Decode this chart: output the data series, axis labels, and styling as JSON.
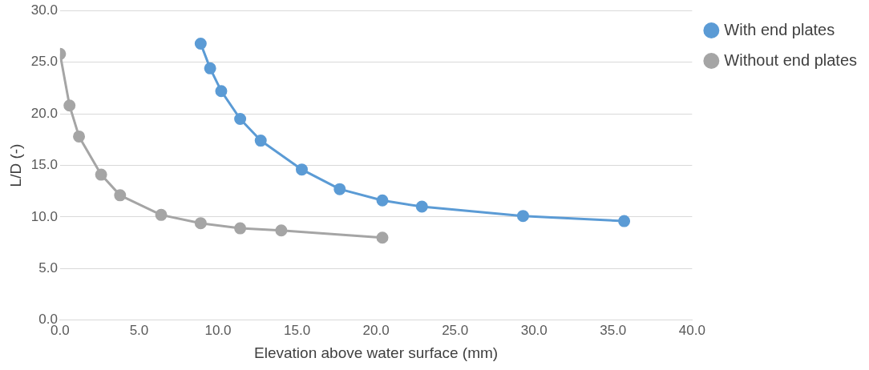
{
  "chart_data": {
    "type": "line",
    "xlabel": "Elevation above water surface (mm)",
    "ylabel": "L/D (-)",
    "xlim": [
      0,
      40
    ],
    "xticks": [
      {
        "value": 0,
        "label": "0.0"
      },
      {
        "value": 5,
        "label": "5.0"
      },
      {
        "value": 10,
        "label": "10.0"
      },
      {
        "value": 15,
        "label": "15.0"
      },
      {
        "value": 20,
        "label": "20.0"
      },
      {
        "value": 25,
        "label": "25.0"
      },
      {
        "value": 30,
        "label": "30.0"
      },
      {
        "value": 35,
        "label": "35.0"
      },
      {
        "value": 40,
        "label": "40.0"
      }
    ],
    "ylim": [
      0,
      30
    ],
    "yticks": [
      {
        "value": 0,
        "label": "0.0"
      },
      {
        "value": 5,
        "label": "5.0"
      },
      {
        "value": 10,
        "label": "10.0"
      },
      {
        "value": 15,
        "label": "15.0"
      },
      {
        "value": 20,
        "label": "20.0"
      },
      {
        "value": 25,
        "label": "25.0"
      },
      {
        "value": 30,
        "label": "30.0"
      }
    ],
    "grid": "y",
    "legend": "right",
    "marker": "circle",
    "line_style": "solid",
    "series": [
      {
        "name": "With end plates",
        "color": "#5b9bd5",
        "x": [
          8.9,
          9.5,
          10.2,
          11.4,
          12.7,
          15.3,
          17.7,
          20.4,
          22.9,
          29.3,
          35.7
        ],
        "values": [
          26.8,
          24.4,
          22.2,
          19.5,
          17.4,
          14.6,
          12.7,
          11.6,
          11.0,
          10.1,
          9.6
        ]
      },
      {
        "name": "Without end plates",
        "color": "#a5a5a5",
        "x": [
          0,
          0.6,
          1.2,
          2.6,
          3.8,
          6.4,
          8.9,
          11.4,
          14.0,
          20.4
        ],
        "values": [
          25.8,
          20.8,
          17.8,
          14.1,
          12.1,
          10.2,
          9.4,
          8.9,
          8.7,
          8.0
        ]
      }
    ]
  }
}
